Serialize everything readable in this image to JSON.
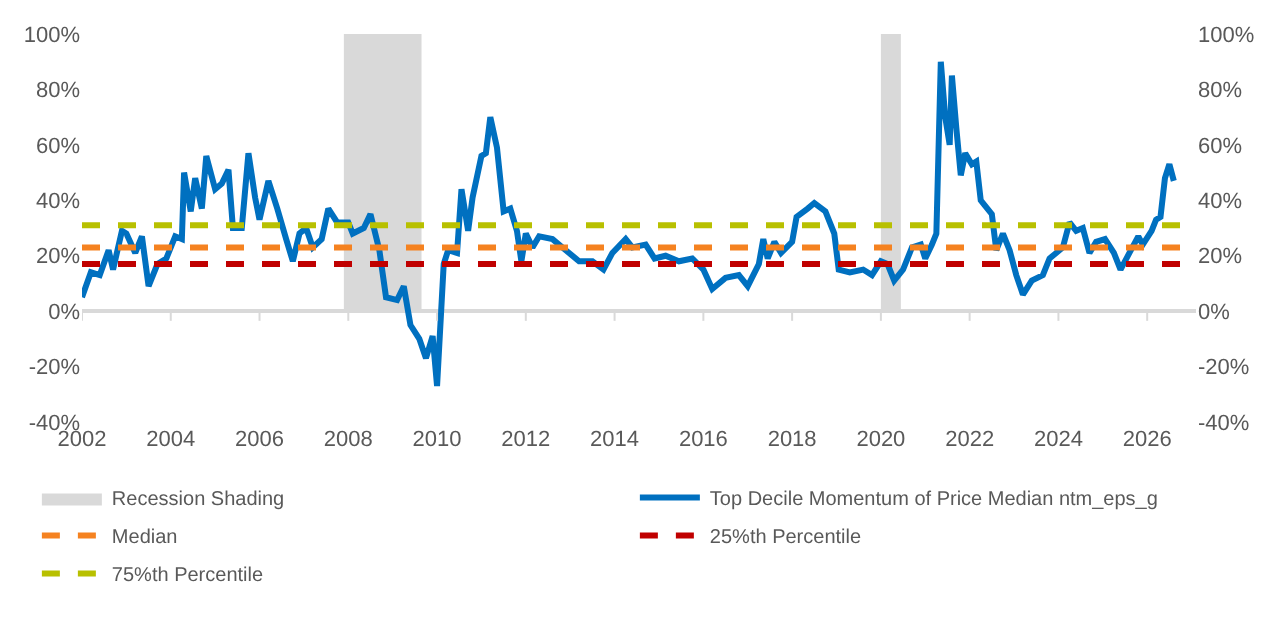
{
  "chart_data": {
    "type": "line",
    "xlim": [
      2002,
      2027.1
    ],
    "xticks": [
      2002,
      2004,
      2006,
      2008,
      2010,
      2012,
      2014,
      2016,
      2018,
      2020,
      2022,
      2024,
      2026
    ],
    "ylim": [
      -40,
      100
    ],
    "yticks": [
      {
        "value": -40,
        "label": "-40%"
      },
      {
        "value": -20,
        "label": "-20%"
      },
      {
        "value": 0,
        "label": "0%"
      },
      {
        "value": 20,
        "label": "20%"
      },
      {
        "value": 40,
        "label": "40%"
      },
      {
        "value": 60,
        "label": "60%"
      },
      {
        "value": 80,
        "label": "80%"
      },
      {
        "value": 100,
        "label": "100%"
      }
    ],
    "y2lim": [
      -40,
      100
    ],
    "y2ticks": [
      {
        "value": -40,
        "label": "-40%"
      },
      {
        "value": -20,
        "label": "-20%"
      },
      {
        "value": 0,
        "label": "0%"
      },
      {
        "value": 20,
        "label": "20%"
      },
      {
        "value": 40,
        "label": "40%"
      },
      {
        "value": 60,
        "label": "60%"
      },
      {
        "value": 80,
        "label": "80%"
      },
      {
        "value": 100,
        "label": "100%"
      }
    ],
    "legend": "bottom",
    "marker": "none",
    "line_style": "solid",
    "bands": [
      {
        "axis": "x",
        "from": 2007.9,
        "to": 2009.65,
        "label": "Recession Shading",
        "color": "#d9d9d9"
      },
      {
        "axis": "x",
        "from": 2020.0,
        "to": 2020.45,
        "color": "#d9d9d9"
      }
    ],
    "series": [
      {
        "name": "Top Decile Momentum of Price Median ntm_eps_g",
        "color": "#0070c0",
        "x": [
          2002.0,
          2002.2,
          2002.4,
          2002.6,
          2002.7,
          2002.9,
          2003.0,
          2003.2,
          2003.35,
          2003.5,
          2003.7,
          2003.9,
          2004.1,
          2004.25,
          2004.3,
          2004.45,
          2004.55,
          2004.7,
          2004.8,
          2005.0,
          2005.15,
          2005.3,
          2005.4,
          2005.6,
          2005.75,
          2005.9,
          2006.0,
          2006.2,
          2006.4,
          2006.6,
          2006.75,
          2006.9,
          2007.05,
          2007.2,
          2007.4,
          2007.55,
          2007.75,
          2008.0,
          2008.1,
          2008.35,
          2008.5,
          2008.7,
          2008.85,
          2009.1,
          2009.25,
          2009.4,
          2009.6,
          2009.75,
          2009.9,
          2010.0,
          2010.15,
          2010.25,
          2010.45,
          2010.55,
          2010.7,
          2010.8,
          2011.0,
          2011.1,
          2011.2,
          2011.35,
          2011.5,
          2011.65,
          2011.8,
          2011.9,
          2012.0,
          2012.15,
          2012.3,
          2012.6,
          2012.9,
          2013.2,
          2013.5,
          2013.75,
          2013.95,
          2014.25,
          2014.4,
          2014.7,
          2014.9,
          2015.15,
          2015.45,
          2015.75,
          2016.0,
          2016.2,
          2016.5,
          2016.8,
          2017.0,
          2017.25,
          2017.35,
          2017.45,
          2017.6,
          2017.75,
          2018.0,
          2018.1,
          2018.35,
          2018.5,
          2018.75,
          2018.95,
          2019.05,
          2019.3,
          2019.6,
          2019.8,
          2020.0,
          2020.15,
          2020.3,
          2020.5,
          2020.7,
          2020.9,
          2021.0,
          2021.15,
          2021.25,
          2021.35,
          2021.45,
          2021.55,
          2021.6,
          2021.7,
          2021.8,
          2021.9,
          2022.05,
          2022.15,
          2022.25,
          2022.35,
          2022.5,
          2022.6,
          2022.75,
          2022.9,
          2023.05,
          2023.2,
          2023.4,
          2023.65,
          2023.8,
          2023.95,
          2024.1,
          2024.25,
          2024.4,
          2024.55,
          2024.7,
          2024.85,
          2025.05,
          2025.25,
          2025.4,
          2025.6,
          2025.8,
          2025.9,
          2026.1,
          2026.2,
          2026.3,
          2026.4,
          2026.5,
          2026.6
        ],
        "values": [
          5,
          14,
          13,
          22,
          15,
          29,
          28,
          21,
          27,
          9,
          17,
          19,
          27,
          26,
          50,
          36,
          48,
          37,
          56,
          44,
          46,
          51,
          30,
          30,
          57,
          41,
          33,
          47,
          37,
          26,
          18,
          28,
          30,
          23,
          26,
          37,
          32,
          32,
          28,
          30,
          35,
          22,
          5,
          4,
          9,
          -5,
          -10,
          -17,
          -9,
          -27,
          17,
          22,
          21,
          44,
          29,
          41,
          56,
          57,
          70,
          59,
          36,
          37,
          29,
          18,
          28,
          23,
          27,
          26,
          22,
          18,
          18,
          15,
          21,
          26,
          23,
          24,
          19,
          20,
          18,
          19,
          15,
          8,
          12,
          13,
          9,
          17,
          26,
          19,
          25,
          21,
          25,
          34,
          37,
          39,
          36,
          28,
          15,
          14,
          15,
          13,
          18,
          17,
          11,
          15,
          23,
          24,
          19,
          24,
          28,
          90,
          70,
          60,
          85,
          66,
          49,
          57,
          53,
          54,
          40,
          38,
          35,
          22,
          28,
          22,
          13,
          6,
          11,
          13,
          19,
          21,
          23,
          32,
          29,
          30,
          21,
          25,
          26,
          21,
          15,
          21,
          27,
          24,
          29,
          33,
          34,
          48,
          53,
          47
        ]
      }
    ],
    "ref_lines": [
      {
        "axis": "y",
        "value": 23,
        "label": "Median",
        "color": "#f58220",
        "line_style": "dashed"
      },
      {
        "axis": "y",
        "value": 17,
        "label": "25%th Percentile",
        "color": "#c00000",
        "line_style": "dashed"
      },
      {
        "axis": "y",
        "value": 31,
        "label": "75%th Percentile",
        "color": "#b8c000",
        "line_style": "dashed"
      }
    ]
  }
}
